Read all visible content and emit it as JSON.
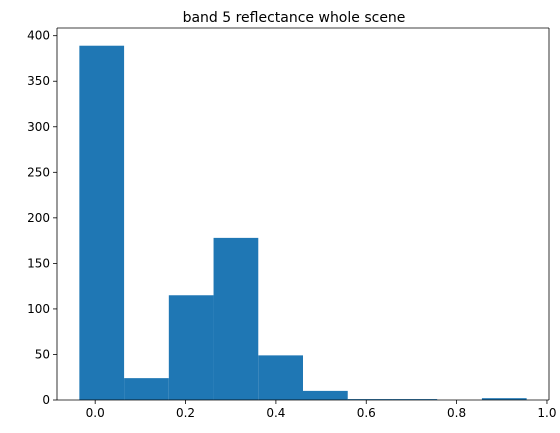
{
  "chart_data": {
    "type": "bar",
    "subtype": "histogram",
    "title": "band 5 reflectance whole scene",
    "xlabel": "",
    "ylabel": "",
    "bins": [
      {
        "x0": -0.035,
        "x1": 0.064,
        "count": 389
      },
      {
        "x0": 0.064,
        "x1": 0.163,
        "count": 24
      },
      {
        "x0": 0.163,
        "x1": 0.262,
        "count": 115
      },
      {
        "x0": 0.262,
        "x1": 0.361,
        "count": 178
      },
      {
        "x0": 0.361,
        "x1": 0.46,
        "count": 49
      },
      {
        "x0": 0.46,
        "x1": 0.559,
        "count": 10
      },
      {
        "x0": 0.559,
        "x1": 0.658,
        "count": 1
      },
      {
        "x0": 0.658,
        "x1": 0.757,
        "count": 1
      },
      {
        "x0": 0.757,
        "x1": 0.856,
        "count": 0
      },
      {
        "x0": 0.856,
        "x1": 0.955,
        "count": 2
      }
    ],
    "xlim": [
      -0.0845,
      1.0045
    ],
    "ylim": [
      0,
      408.45
    ],
    "xticks": [
      0.0,
      0.2,
      0.4,
      0.6,
      0.8,
      1.0
    ],
    "xtick_labels": [
      "0.0",
      "0.2",
      "0.4",
      "0.6",
      "0.8",
      "1.0"
    ],
    "yticks": [
      0,
      50,
      100,
      150,
      200,
      250,
      300,
      350,
      400
    ],
    "ytick_labels": [
      "0",
      "50",
      "100",
      "150",
      "200",
      "250",
      "300",
      "350",
      "400"
    ],
    "bar_color": "#1f77b4",
    "grid": false,
    "legend": "none"
  }
}
